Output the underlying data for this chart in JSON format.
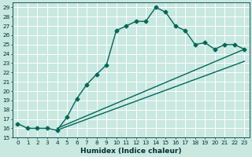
{
  "xlabel": "Humidex (Indice chaleur)",
  "xlim": [
    -0.5,
    23.5
  ],
  "ylim": [
    15,
    29.5
  ],
  "yticks": [
    15,
    16,
    17,
    18,
    19,
    20,
    21,
    22,
    23,
    24,
    25,
    26,
    27,
    28,
    29
  ],
  "xticks": [
    0,
    1,
    2,
    3,
    4,
    5,
    6,
    7,
    8,
    9,
    10,
    11,
    12,
    13,
    14,
    15,
    16,
    17,
    18,
    19,
    20,
    21,
    22,
    23
  ],
  "background_color": "#c8e8e0",
  "grid_color": "#ffffff",
  "line_color": "#006858",
  "curve1_x": [
    0,
    1,
    2,
    3,
    4,
    5,
    6,
    7,
    8,
    9,
    10,
    11,
    12,
    13,
    14,
    15,
    16,
    17,
    18,
    19,
    20,
    21,
    22,
    23
  ],
  "curve1_y": [
    16.5,
    16.0,
    16.0,
    16.0,
    15.8,
    17.2,
    19.2,
    20.7,
    21.8,
    22.8,
    26.5,
    27.0,
    27.5,
    27.5,
    29.0,
    28.5,
    27.0,
    26.5,
    25.0,
    25.2,
    24.5,
    25.0,
    25.0,
    24.5
  ],
  "line1_x": [
    4,
    23
  ],
  "line1_y": [
    16.0,
    24.5
  ],
  "line2_x": [
    4,
    23
  ],
  "line2_y": [
    15.8,
    23.2
  ],
  "marker": "D",
  "markersize": 2.5,
  "linewidth": 1.0,
  "tick_fontsize": 5.2,
  "xlabel_fontsize": 6.5
}
